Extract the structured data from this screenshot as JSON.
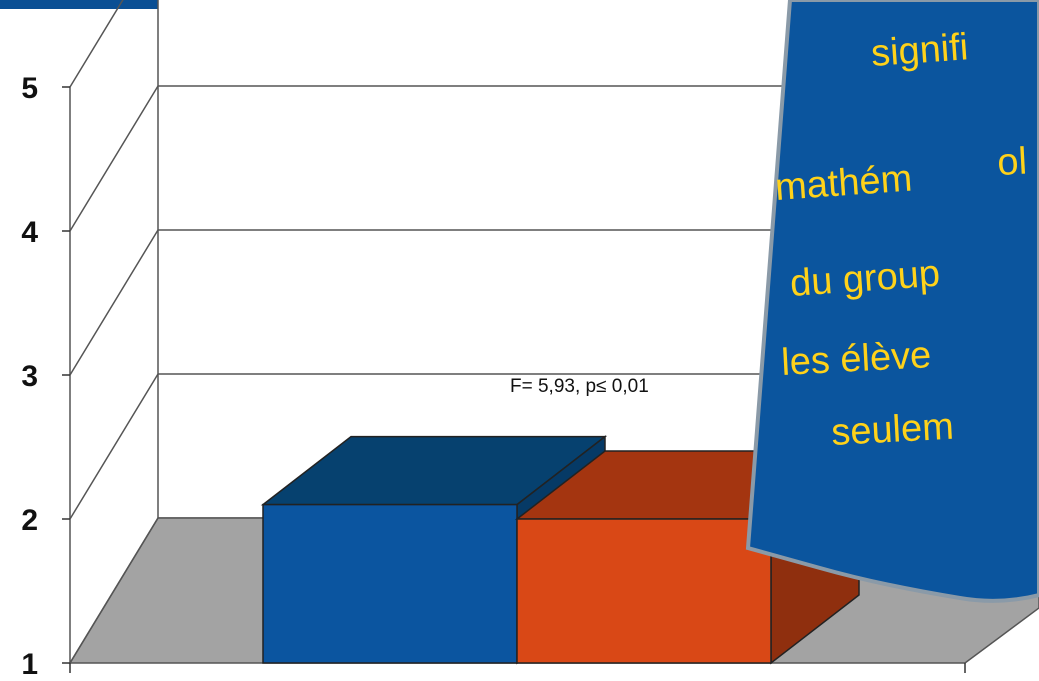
{
  "chart_data": {
    "type": "bar",
    "style": "3d-clustered-column",
    "series": [
      {
        "values": [
          2.1
        ],
        "color": "#0b55a0",
        "top_color": "#06416f",
        "side_color": "#063a66"
      },
      {
        "values": [
          2.0
        ],
        "color": "#d94816",
        "top_color": "#a43510",
        "side_color": "#8f2f0e"
      }
    ],
    "ylim": [
      1,
      5
    ],
    "yticks": [
      "5",
      "4",
      "3",
      "2",
      "1"
    ],
    "grid": true,
    "annotation": "F= 5,93,  p≤ 0,01"
  },
  "callout": {
    "lines": [
      "signifi",
      "ol",
      "mathém",
      "du group",
      "les élève",
      "seulem"
    ],
    "background": "#0b559e",
    "text_color": "#ffd21a"
  },
  "header_bar_color": "#0a4f94"
}
